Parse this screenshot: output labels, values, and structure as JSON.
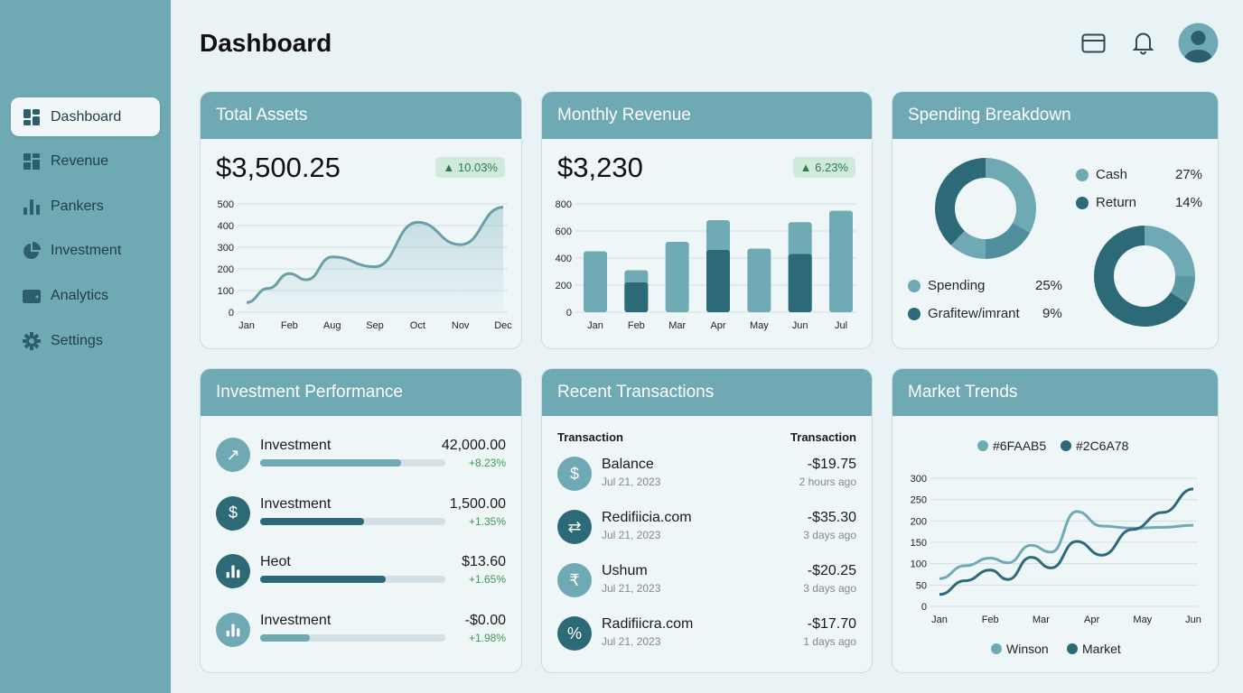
{
  "header": {
    "title": "Dashboard",
    "icons": [
      "card-icon",
      "bell-icon",
      "avatar"
    ]
  },
  "sidebar": {
    "items": [
      {
        "label": "Dashboard",
        "icon": "dashboard-icon",
        "active": true
      },
      {
        "label": "Revenue",
        "icon": "grid-icon"
      },
      {
        "label": "Pankers",
        "icon": "bar-chart-icon"
      },
      {
        "label": "Investment",
        "icon": "pie-chart-icon"
      },
      {
        "label": "Analytics",
        "icon": "wallet-icon"
      },
      {
        "label": "Settings",
        "icon": "gear-icon"
      }
    ]
  },
  "colors": {
    "light": "#6FAAB5",
    "dark": "#2C6A78",
    "positive": "#3b9a4f"
  },
  "total_assets": {
    "title": "Total Assets",
    "value": "$3,500.25",
    "change": "▲ 10.03%"
  },
  "monthly_revenue": {
    "title": "Monthly Revenue",
    "value": "$3,230",
    "change": "▲ 6.23%"
  },
  "spending": {
    "title": "Spending Breakdown",
    "legend": [
      {
        "label": "Cash",
        "pct": "27%",
        "color": "#6FAAB5"
      },
      {
        "label": "Return",
        "pct": "14%",
        "color": "#2C6A78"
      },
      {
        "label": "Spending",
        "pct": "25%",
        "color": "#6FAAB5"
      },
      {
        "label": "Grafitew/imrant",
        "pct": "9%",
        "color": "#2C6A78"
      }
    ]
  },
  "investment": {
    "title": "Investment Performance",
    "items": [
      {
        "name": "Investment",
        "value": "42,000.00",
        "change": "+8.23%",
        "progress": 0.76,
        "icon": "trend-up-icon",
        "tone": "light"
      },
      {
        "name": "Investment",
        "value": "1,500.00",
        "change": "+1.35%",
        "progress": 0.56,
        "icon": "dollar-icon",
        "tone": "dark"
      },
      {
        "name": "Heot",
        "value": "$13.60",
        "change": "+1.65%",
        "progress": 0.68,
        "icon": "bar-chart-icon",
        "tone": "dark"
      },
      {
        "name": "Investment",
        "value": "-$0.00",
        "change": "+1.98%",
        "progress": 0.27,
        "icon": "bar-chart-icon",
        "tone": "light"
      }
    ]
  },
  "transactions": {
    "title": "Recent Transactions",
    "col1": "Transaction",
    "col2": "Transaction",
    "items": [
      {
        "name": "Balance",
        "date": "Jul 21, 2023",
        "amount": "-$19.75",
        "ago": "2 hours ago",
        "icon": "dollar-icon",
        "glyph": "$",
        "tone": "light"
      },
      {
        "name": "Redifiicia.com",
        "date": "Jul 21, 2023",
        "amount": "-$35.30",
        "ago": "3 days ago",
        "icon": "transfer-icon",
        "glyph": "⇄",
        "tone": "dark"
      },
      {
        "name": "Ushum",
        "date": "Jul 21, 2023",
        "amount": "-$20.25",
        "ago": "3 days ago",
        "icon": "rupee-icon",
        "glyph": "₹",
        "tone": "light"
      },
      {
        "name": "Radifiicra.com",
        "date": "Jul 21, 2023",
        "amount": "-$17.70",
        "ago": "1 days ago",
        "icon": "percent-icon",
        "glyph": "%",
        "tone": "dark"
      }
    ]
  },
  "market": {
    "title": "Market Trends"
  },
  "chart_data": [
    {
      "type": "area",
      "categories": [
        "Jan",
        "Feb",
        "Aug",
        "Sep",
        "Oct",
        "Nov",
        "Dec"
      ],
      "yticks": [
        0,
        100,
        200,
        300,
        400,
        500
      ],
      "ylim": [
        0,
        500
      ],
      "x": [
        0,
        0.5,
        1,
        1.4,
        2,
        3,
        4,
        5,
        6
      ],
      "values": [
        45,
        110,
        178,
        150,
        255,
        210,
        415,
        312,
        485
      ],
      "grid": true
    },
    {
      "type": "bar",
      "categories": [
        "Jan",
        "Feb",
        "Mar",
        "Apr",
        "May",
        "Jun",
        "Jul"
      ],
      "yticks": [
        0,
        200,
        400,
        600,
        800
      ],
      "ylim": [
        0,
        800
      ],
      "series": [
        {
          "values": [
            450,
            310,
            520,
            680,
            470,
            665,
            750
          ],
          "color": "#6FAAB5"
        },
        {
          "values": [
            null,
            220,
            null,
            460,
            null,
            430,
            null
          ],
          "color": "#2C6A78"
        }
      ],
      "grid": true
    },
    {
      "type": "line",
      "categories": [
        "Jan",
        "Feb",
        "Mar",
        "Apr",
        "May",
        "Jun"
      ],
      "yticks": [
        0,
        50,
        100,
        150,
        200,
        250,
        300
      ],
      "ylim": [
        0,
        300
      ],
      "top_legend": [
        "#6FAAB5",
        "#2C6A78"
      ],
      "x": [
        0,
        0.5,
        1,
        1.35,
        1.8,
        2.2,
        2.7,
        3.2,
        3.8,
        4.4,
        5
      ],
      "series": [
        {
          "name": "Winson",
          "color": "#6FAAB5",
          "values": [
            65,
            95,
            113,
            102,
            143,
            127,
            222,
            188,
            183,
            185,
            190
          ]
        },
        {
          "name": "Market",
          "color": "#2C6A78",
          "values": [
            28,
            60,
            85,
            63,
            115,
            90,
            152,
            120,
            180,
            220,
            275
          ]
        }
      ],
      "grid": true
    }
  ]
}
